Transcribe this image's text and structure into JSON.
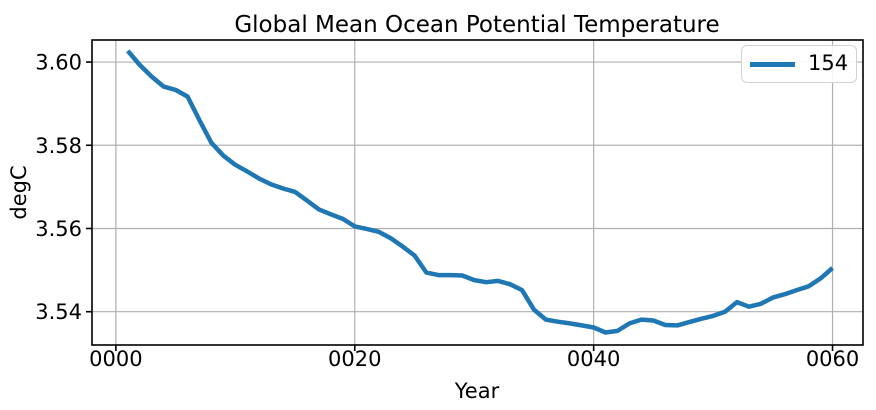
{
  "chart_data": {
    "type": "line",
    "title": "Global Mean Ocean Potential Temperature",
    "xlabel": "Year",
    "ylabel": "degC",
    "grid": true,
    "xlim": [
      -2.0,
      62.55
    ],
    "ylim": [
      3.532,
      3.6053
    ],
    "x_axis": {
      "label": "Year",
      "tick_values": [
        0,
        20,
        40,
        60
      ],
      "tick_labels": [
        "0000",
        "0020",
        "0040",
        "0060"
      ]
    },
    "y_axis": {
      "label": "degC",
      "tick_values": [
        3.54,
        3.56,
        3.58,
        3.6
      ],
      "tick_labels": [
        "3.54",
        "3.56",
        "3.58",
        "3.60"
      ]
    },
    "legend": {
      "location": "upper right",
      "entries": [
        {
          "label": "154",
          "color": "#1f77b4"
        }
      ]
    },
    "series": [
      {
        "name": "154",
        "color": "#1f77b4",
        "x": [
          1,
          2,
          3,
          4,
          5,
          6,
          7,
          8,
          9,
          10,
          11,
          12,
          13,
          14,
          15,
          16,
          17,
          18,
          19,
          20,
          21,
          22,
          23,
          24,
          25,
          26,
          27,
          28,
          29,
          30,
          31,
          32,
          33,
          34,
          35,
          36,
          37,
          38,
          39,
          40,
          41,
          42,
          43,
          44,
          45,
          46,
          47,
          48,
          49,
          50,
          51,
          52,
          53,
          54,
          55,
          56,
          57,
          58,
          59,
          60
        ],
        "y": [
          3.6027,
          3.5993,
          3.5965,
          3.5941,
          3.5933,
          3.5917,
          3.586,
          3.5806,
          3.5775,
          3.5753,
          3.5737,
          3.572,
          3.5706,
          3.5696,
          3.5688,
          3.5667,
          3.5646,
          3.5634,
          3.5623,
          3.5605,
          3.5599,
          3.5592,
          3.5577,
          3.5557,
          3.5535,
          3.5494,
          3.5488,
          3.5488,
          3.5487,
          3.5476,
          3.5471,
          3.5474,
          3.5466,
          3.5452,
          3.5405,
          3.5381,
          3.5376,
          3.5372,
          3.5367,
          3.5362,
          3.535,
          3.5354,
          3.5372,
          3.5381,
          3.5379,
          3.5368,
          3.5367,
          3.5375,
          3.5383,
          3.539,
          3.54,
          3.5423,
          3.5412,
          3.5419,
          3.5434,
          3.5442,
          3.5452,
          3.5461,
          3.548,
          3.5505
        ]
      }
    ],
    "colors": {
      "line": "#1f77b4",
      "grid": "#b0b0b0",
      "spine": "#000000",
      "background": "#ffffff",
      "legend_border": "#d2d2d2"
    },
    "line_width": 4.5
  }
}
